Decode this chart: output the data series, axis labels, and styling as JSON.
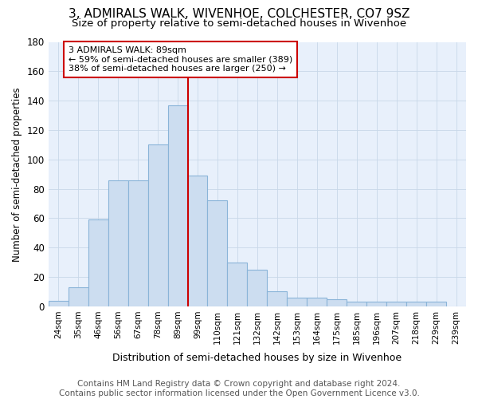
{
  "title": "3, ADMIRALS WALK, WIVENHOE, COLCHESTER, CO7 9SZ",
  "subtitle": "Size of property relative to semi-detached houses in Wivenhoe",
  "xlabel": "Distribution of semi-detached houses by size in Wivenhoe",
  "ylabel": "Number of semi-detached properties",
  "categories": [
    "24sqm",
    "35sqm",
    "46sqm",
    "56sqm",
    "67sqm",
    "78sqm",
    "89sqm",
    "99sqm",
    "110sqm",
    "121sqm",
    "132sqm",
    "142sqm",
    "153sqm",
    "164sqm",
    "175sqm",
    "185sqm",
    "196sqm",
    "207sqm",
    "218sqm",
    "229sqm",
    "239sqm"
  ],
  "values": [
    4,
    13,
    59,
    86,
    86,
    110,
    137,
    89,
    72,
    30,
    25,
    10,
    6,
    6,
    5,
    3,
    3,
    3,
    3,
    3,
    0
  ],
  "bar_color": "#ccddf0",
  "bar_edge_color": "#8ab4d8",
  "property_label": "3 ADMIRALS WALK: 89sqm",
  "property_bar_index": 6,
  "pct_smaller": 59,
  "pct_smaller_count": 389,
  "pct_larger": 38,
  "pct_larger_count": 250,
  "vline_color": "#cc0000",
  "annotation_box_edge_color": "#cc0000",
  "annotation_box_face_color": "#ffffff",
  "ylim": [
    0,
    180
  ],
  "yticks": [
    0,
    20,
    40,
    60,
    80,
    100,
    120,
    140,
    160,
    180
  ],
  "grid_color": "#c8d8e8",
  "bg_color": "#e8f0fb",
  "title_fontsize": 11,
  "subtitle_fontsize": 9.5,
  "xlabel_fontsize": 9,
  "ylabel_fontsize": 8.5,
  "footer_text": "Contains HM Land Registry data © Crown copyright and database right 2024.\nContains public sector information licensed under the Open Government Licence v3.0.",
  "footer_fontsize": 7.5
}
